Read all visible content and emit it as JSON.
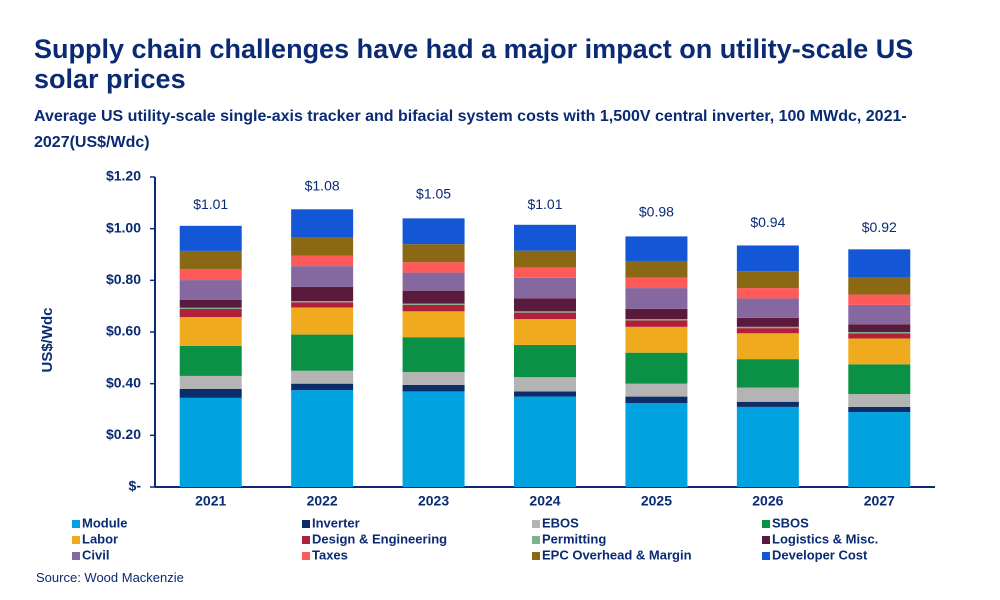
{
  "chart_data": {
    "type": "stacked-bar",
    "title": "Supply chain challenges have had a major impact on utility-scale US solar prices",
    "subtitle": "Average US utility-scale single-axis tracker and bifacial system costs with 1,500V central inverter, 100 MWdc, 2021-2027(US$/Wdc)",
    "y_label": "US$/Wdc",
    "source": "Source: Wood Mackenzie",
    "categories": [
      "2021",
      "2022",
      "2023",
      "2024",
      "2025",
      "2026",
      "2027"
    ],
    "series": [
      {
        "name": "Module",
        "color": "#00a3e0",
        "values": [
          0.345,
          0.375,
          0.37,
          0.35,
          0.325,
          0.31,
          0.29
        ]
      },
      {
        "name": "Inverter",
        "color": "#0b2d6b",
        "values": [
          0.035,
          0.025,
          0.025,
          0.02,
          0.025,
          0.02,
          0.02
        ]
      },
      {
        "name": "EBOS",
        "color": "#b4b4b4",
        "values": [
          0.05,
          0.05,
          0.05,
          0.055,
          0.05,
          0.055,
          0.05
        ]
      },
      {
        "name": "SBOS",
        "color": "#0a9146",
        "values": [
          0.116,
          0.14,
          0.135,
          0.125,
          0.12,
          0.11,
          0.115
        ]
      },
      {
        "name": "Labor",
        "color": "#f0aa1e",
        "values": [
          0.112,
          0.105,
          0.1,
          0.1,
          0.1,
          0.1,
          0.1
        ]
      },
      {
        "name": "Design & Engineering",
        "color": "#b0203a",
        "values": [
          0.031,
          0.02,
          0.025,
          0.025,
          0.025,
          0.02,
          0.02
        ]
      },
      {
        "name": "Permitting",
        "color": "#7fb08f",
        "values": [
          0.005,
          0.005,
          0.005,
          0.005,
          0.005,
          0.005,
          0.005
        ]
      },
      {
        "name": "Logistics & Misc.",
        "color": "#5a1a3c",
        "values": [
          0.03,
          0.055,
          0.05,
          0.05,
          0.04,
          0.035,
          0.03
        ]
      },
      {
        "name": "Civil",
        "color": "#8668a0",
        "values": [
          0.077,
          0.08,
          0.07,
          0.08,
          0.08,
          0.075,
          0.075
        ]
      },
      {
        "name": "Taxes",
        "color": "#ff5a5a",
        "values": [
          0.043,
          0.04,
          0.04,
          0.04,
          0.04,
          0.04,
          0.04
        ]
      },
      {
        "name": "EPC Overhead & Margin",
        "color": "#8b6914",
        "values": [
          0.07,
          0.07,
          0.07,
          0.065,
          0.065,
          0.065,
          0.065
        ]
      },
      {
        "name": "Developer Cost",
        "color": "#1357d6",
        "values": [
          0.097,
          0.11,
          0.1,
          0.1,
          0.095,
          0.1,
          0.11
        ]
      }
    ],
    "totals": [
      1.01,
      1.08,
      1.05,
      1.01,
      0.98,
      0.94,
      0.92
    ],
    "total_labels": [
      "$1.01",
      "$1.08",
      "$1.05",
      "$1.01",
      "$0.98",
      "$0.94",
      "$0.92"
    ],
    "ylim": [
      0,
      1.2
    ],
    "yticks": [
      {
        "value": 0,
        "label": "$-"
      },
      {
        "value": 0.2,
        "label": "$0.20"
      },
      {
        "value": 0.4,
        "label": "$0.40"
      },
      {
        "value": 0.6,
        "label": "$0.60"
      },
      {
        "value": 0.8,
        "label": "$0.80"
      },
      {
        "value": 1.0,
        "label": "$1.00"
      },
      {
        "value": 1.2,
        "label": "$1.20"
      }
    ]
  }
}
